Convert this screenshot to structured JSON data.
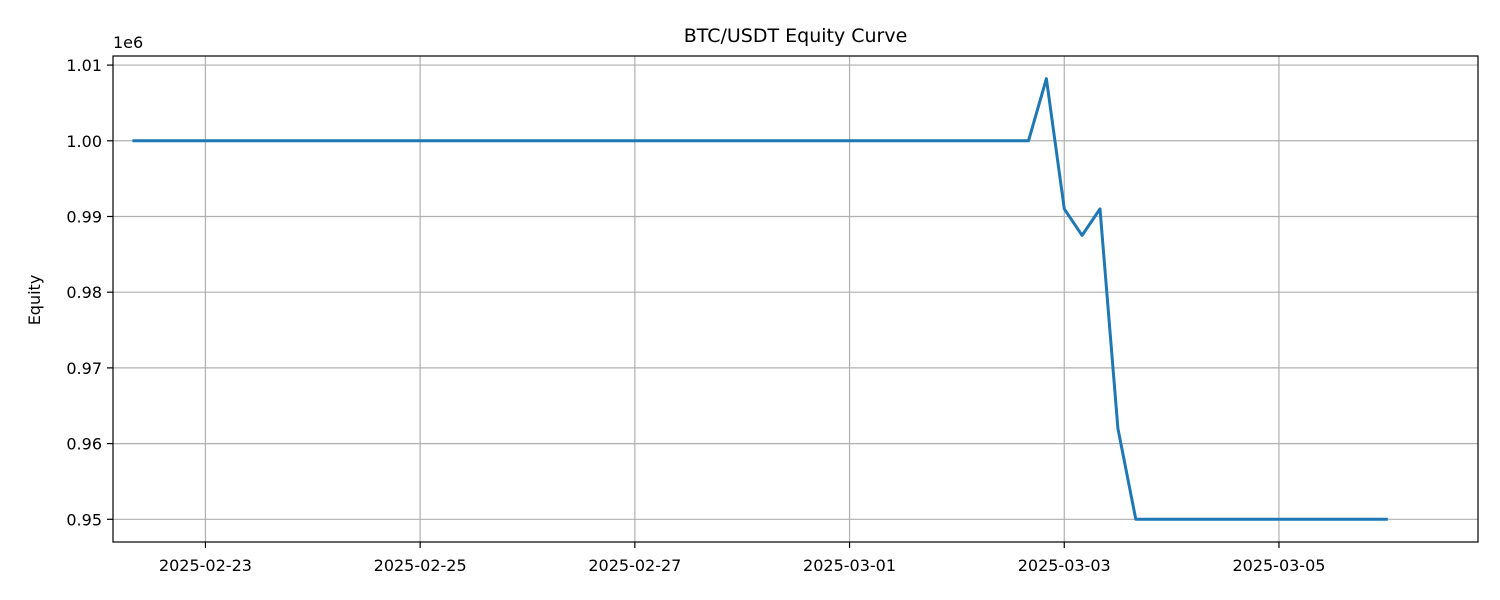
{
  "chart_data": {
    "type": "line",
    "title": "BTC/USDT Equity Curve",
    "xlabel": "",
    "ylabel": "Equity",
    "y_offset_label": "1e6",
    "x_axis_type": "date",
    "grid": true,
    "xlim": [
      "2025-02-22T03:20",
      "2025-03-06T20:30"
    ],
    "ylim": [
      0.947,
      1.0112
    ],
    "x_ticks": [
      "2025-02-23",
      "2025-02-25",
      "2025-02-27",
      "2025-03-01",
      "2025-03-03",
      "2025-03-05"
    ],
    "y_ticks": [
      0.95,
      0.96,
      0.97,
      0.98,
      0.99,
      1.0,
      1.01
    ],
    "y_tick_labels": [
      "0.95",
      "0.96",
      "0.97",
      "0.98",
      "0.99",
      "1.00",
      "1.01"
    ],
    "series": [
      {
        "color": "#1f77b4",
        "x": [
          "2025-02-22T08:00",
          "2025-03-02T16:00",
          "2025-03-02T20:00",
          "2025-03-03T00:00",
          "2025-03-03T04:00",
          "2025-03-03T08:00",
          "2025-03-03T12:00",
          "2025-03-03T16:00",
          "2025-03-06T00:00"
        ],
        "y": [
          1.0,
          1.0,
          1.0082,
          0.991,
          0.9875,
          0.991,
          0.962,
          0.95,
          0.95
        ]
      }
    ]
  }
}
